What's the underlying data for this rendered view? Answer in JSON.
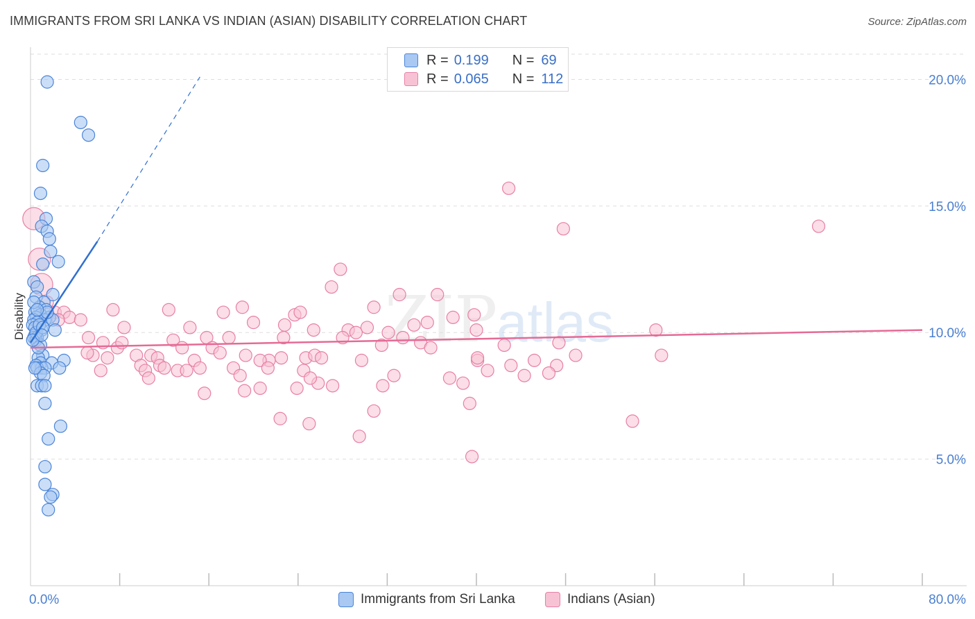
{
  "header": {
    "title": "IMMIGRANTS FROM SRI LANKA VS INDIAN (ASIAN) DISABILITY CORRELATION CHART",
    "source": "Source: ZipAtlas.com"
  },
  "legend": {
    "series1": {
      "r_label": "R =",
      "r_value": "0.199",
      "n_label": "N =",
      "n_value": "69"
    },
    "series2": {
      "r_label": "R =",
      "r_value": "0.065",
      "n_label": "N =",
      "n_value": "112"
    }
  },
  "bottom_legend": {
    "series1": "Immigrants from Sri Lanka",
    "series2": "Indians (Asian)"
  },
  "watermark": {
    "part1": "ZIP",
    "part2": "atlas"
  },
  "chart_data": {
    "type": "scatter",
    "title": "IMMIGRANTS FROM SRI LANKA VS INDIAN (ASIAN) DISABILITY CORRELATION CHART",
    "xlabel": "",
    "ylabel": "Disability",
    "xlim": [
      0,
      80
    ],
    "ylim": [
      0,
      21
    ],
    "x_tick_labels": [
      "0.0%",
      "80.0%"
    ],
    "y_ticks": [
      5,
      10,
      15,
      20
    ],
    "y_tick_labels": [
      "5.0%",
      "10.0%",
      "15.0%",
      "20.0%"
    ],
    "colors": {
      "series1_fill": "#a9c8f2",
      "series1_stroke": "#4a84d8",
      "series1_line": "#2f6fd0",
      "series2_fill": "#f7c3d4",
      "series2_stroke": "#e77fa5",
      "series2_line": "#e56a96",
      "grid": "#dddddd",
      "axis_text": "#4a7fd0"
    },
    "series": [
      {
        "name": "Immigrants from Sri Lanka",
        "R": 0.199,
        "N": 69,
        "trend": {
          "x0": 0,
          "y0": 9.6,
          "x1": 6.0,
          "y1": 13.6,
          "dash_to_x": 15.2,
          "dash_to_y": 20.1
        },
        "points": [
          [
            1.5,
            19.9
          ],
          [
            4.5,
            18.3
          ],
          [
            5.2,
            17.8
          ],
          [
            1.1,
            16.6
          ],
          [
            0.9,
            15.5
          ],
          [
            1.4,
            14.5
          ],
          [
            1.0,
            14.2
          ],
          [
            1.5,
            14.0
          ],
          [
            1.7,
            13.7
          ],
          [
            1.8,
            13.2
          ],
          [
            2.5,
            12.8
          ],
          [
            1.1,
            12.7
          ],
          [
            0.3,
            12.0
          ],
          [
            0.6,
            11.8
          ],
          [
            0.5,
            11.4
          ],
          [
            2.0,
            11.5
          ],
          [
            1.2,
            11.2
          ],
          [
            0.8,
            11.0
          ],
          [
            1.4,
            10.9
          ],
          [
            0.4,
            10.8
          ],
          [
            0.9,
            10.7
          ],
          [
            0.5,
            10.6
          ],
          [
            1.7,
            10.6
          ],
          [
            0.3,
            10.5
          ],
          [
            1.3,
            10.5
          ],
          [
            2.0,
            10.5
          ],
          [
            0.6,
            10.4
          ],
          [
            0.2,
            10.3
          ],
          [
            0.4,
            10.2
          ],
          [
            1.0,
            10.1
          ],
          [
            2.2,
            10.1
          ],
          [
            0.4,
            9.9
          ],
          [
            0.3,
            9.8
          ],
          [
            0.6,
            9.8
          ],
          [
            0.5,
            9.7
          ],
          [
            0.9,
            9.5
          ],
          [
            1.1,
            9.1
          ],
          [
            0.7,
            9.0
          ],
          [
            0.9,
            8.8
          ],
          [
            1.9,
            8.8
          ],
          [
            0.5,
            8.7
          ],
          [
            1.0,
            8.6
          ],
          [
            3.0,
            8.9
          ],
          [
            0.6,
            8.6
          ],
          [
            1.3,
            8.6
          ],
          [
            2.6,
            8.6
          ],
          [
            0.9,
            8.4
          ],
          [
            1.2,
            8.3
          ],
          [
            0.6,
            7.9
          ],
          [
            1.0,
            7.9
          ],
          [
            1.3,
            7.9
          ],
          [
            1.3,
            7.2
          ],
          [
            2.7,
            6.3
          ],
          [
            1.6,
            5.8
          ],
          [
            1.3,
            4.7
          ],
          [
            1.3,
            4.0
          ],
          [
            2.0,
            3.6
          ],
          [
            1.8,
            3.5
          ],
          [
            1.6,
            3.0
          ],
          [
            0.5,
            10.0
          ],
          [
            0.8,
            10.3
          ],
          [
            0.3,
            11.2
          ],
          [
            0.7,
            9.4
          ],
          [
            1.5,
            10.8
          ],
          [
            0.2,
            9.7
          ],
          [
            1.1,
            10.2
          ],
          [
            0.4,
            8.6
          ],
          [
            0.6,
            10.9
          ],
          [
            1.0,
            9.9
          ]
        ]
      },
      {
        "name": "Indians (Asian)",
        "R": 0.065,
        "N": 112,
        "trend": {
          "x0": 0,
          "y0": 9.4,
          "x1": 80,
          "y1": 10.1
        },
        "points": [
          [
            0.3,
            14.5
          ],
          [
            0.8,
            12.9
          ],
          [
            1.0,
            11.9
          ],
          [
            1.5,
            11.2
          ],
          [
            2.2,
            10.8
          ],
          [
            3.0,
            10.8
          ],
          [
            3.5,
            10.6
          ],
          [
            2.5,
            10.5
          ],
          [
            7.4,
            10.9
          ],
          [
            8.4,
            10.2
          ],
          [
            12.4,
            10.9
          ],
          [
            14.3,
            10.2
          ],
          [
            17.3,
            10.8
          ],
          [
            19.0,
            11.0
          ],
          [
            20.0,
            10.4
          ],
          [
            22.8,
            10.3
          ],
          [
            23.7,
            10.7
          ],
          [
            24.2,
            10.8
          ],
          [
            25.4,
            10.1
          ],
          [
            27.8,
            12.5
          ],
          [
            27.0,
            11.8
          ],
          [
            28.5,
            10.1
          ],
          [
            30.2,
            10.2
          ],
          [
            30.8,
            11.0
          ],
          [
            33.1,
            11.5
          ],
          [
            34.4,
            10.3
          ],
          [
            35.6,
            10.4
          ],
          [
            36.5,
            11.5
          ],
          [
            37.9,
            10.6
          ],
          [
            40.0,
            10.1
          ],
          [
            42.9,
            15.7
          ],
          [
            47.8,
            14.1
          ],
          [
            56.1,
            10.1
          ],
          [
            70.7,
            14.2
          ],
          [
            5.2,
            9.8
          ],
          [
            5.6,
            9.1
          ],
          [
            6.5,
            9.6
          ],
          [
            6.9,
            9.0
          ],
          [
            7.8,
            9.4
          ],
          [
            8.2,
            9.6
          ],
          [
            9.5,
            9.1
          ],
          [
            10.8,
            9.1
          ],
          [
            11.4,
            9.0
          ],
          [
            12.8,
            9.7
          ],
          [
            13.6,
            9.4
          ],
          [
            14.7,
            8.9
          ],
          [
            15.8,
            9.8
          ],
          [
            16.3,
            9.4
          ],
          [
            17.0,
            9.2
          ],
          [
            17.8,
            9.8
          ],
          [
            19.3,
            9.1
          ],
          [
            21.4,
            8.9
          ],
          [
            22.7,
            9.8
          ],
          [
            24.7,
            9.0
          ],
          [
            25.5,
            9.1
          ],
          [
            26.1,
            9.0
          ],
          [
            28.0,
            9.8
          ],
          [
            29.2,
            10.0
          ],
          [
            31.5,
            9.5
          ],
          [
            32.1,
            10.0
          ],
          [
            33.4,
            9.8
          ],
          [
            35.0,
            9.6
          ],
          [
            35.9,
            9.4
          ],
          [
            4.5,
            10.5
          ],
          [
            5.1,
            9.2
          ],
          [
            6.3,
            8.5
          ],
          [
            9.9,
            8.7
          ],
          [
            10.3,
            8.5
          ],
          [
            10.6,
            8.2
          ],
          [
            11.6,
            8.7
          ],
          [
            12.0,
            8.6
          ],
          [
            13.2,
            8.5
          ],
          [
            14.0,
            8.5
          ],
          [
            15.2,
            8.6
          ],
          [
            18.2,
            8.6
          ],
          [
            18.8,
            8.3
          ],
          [
            20.6,
            8.9
          ],
          [
            21.3,
            8.6
          ],
          [
            22.5,
            9.0
          ],
          [
            24.5,
            8.5
          ],
          [
            25.8,
            8.0
          ],
          [
            27.1,
            7.9
          ],
          [
            29.7,
            8.9
          ],
          [
            31.6,
            7.9
          ],
          [
            32.6,
            8.3
          ],
          [
            37.6,
            8.2
          ],
          [
            40.1,
            8.9
          ],
          [
            42.5,
            9.5
          ],
          [
            45.2,
            8.9
          ],
          [
            47.4,
            9.6
          ],
          [
            48.9,
            9.1
          ],
          [
            56.6,
            9.1
          ],
          [
            47.2,
            8.7
          ],
          [
            43.1,
            8.7
          ],
          [
            39.4,
            7.2
          ],
          [
            39.8,
            10.7
          ],
          [
            38.8,
            8.0
          ],
          [
            41.0,
            8.5
          ],
          [
            15.6,
            7.6
          ],
          [
            19.2,
            7.7
          ],
          [
            20.6,
            7.8
          ],
          [
            23.9,
            7.8
          ],
          [
            25.1,
            8.2
          ],
          [
            30.8,
            6.9
          ],
          [
            22.4,
            6.6
          ],
          [
            25.0,
            6.4
          ],
          [
            29.5,
            5.9
          ],
          [
            39.6,
            5.1
          ],
          [
            54.0,
            6.5
          ],
          [
            40.1,
            9.0
          ],
          [
            44.3,
            8.3
          ],
          [
            46.5,
            8.4
          ]
        ]
      }
    ]
  }
}
